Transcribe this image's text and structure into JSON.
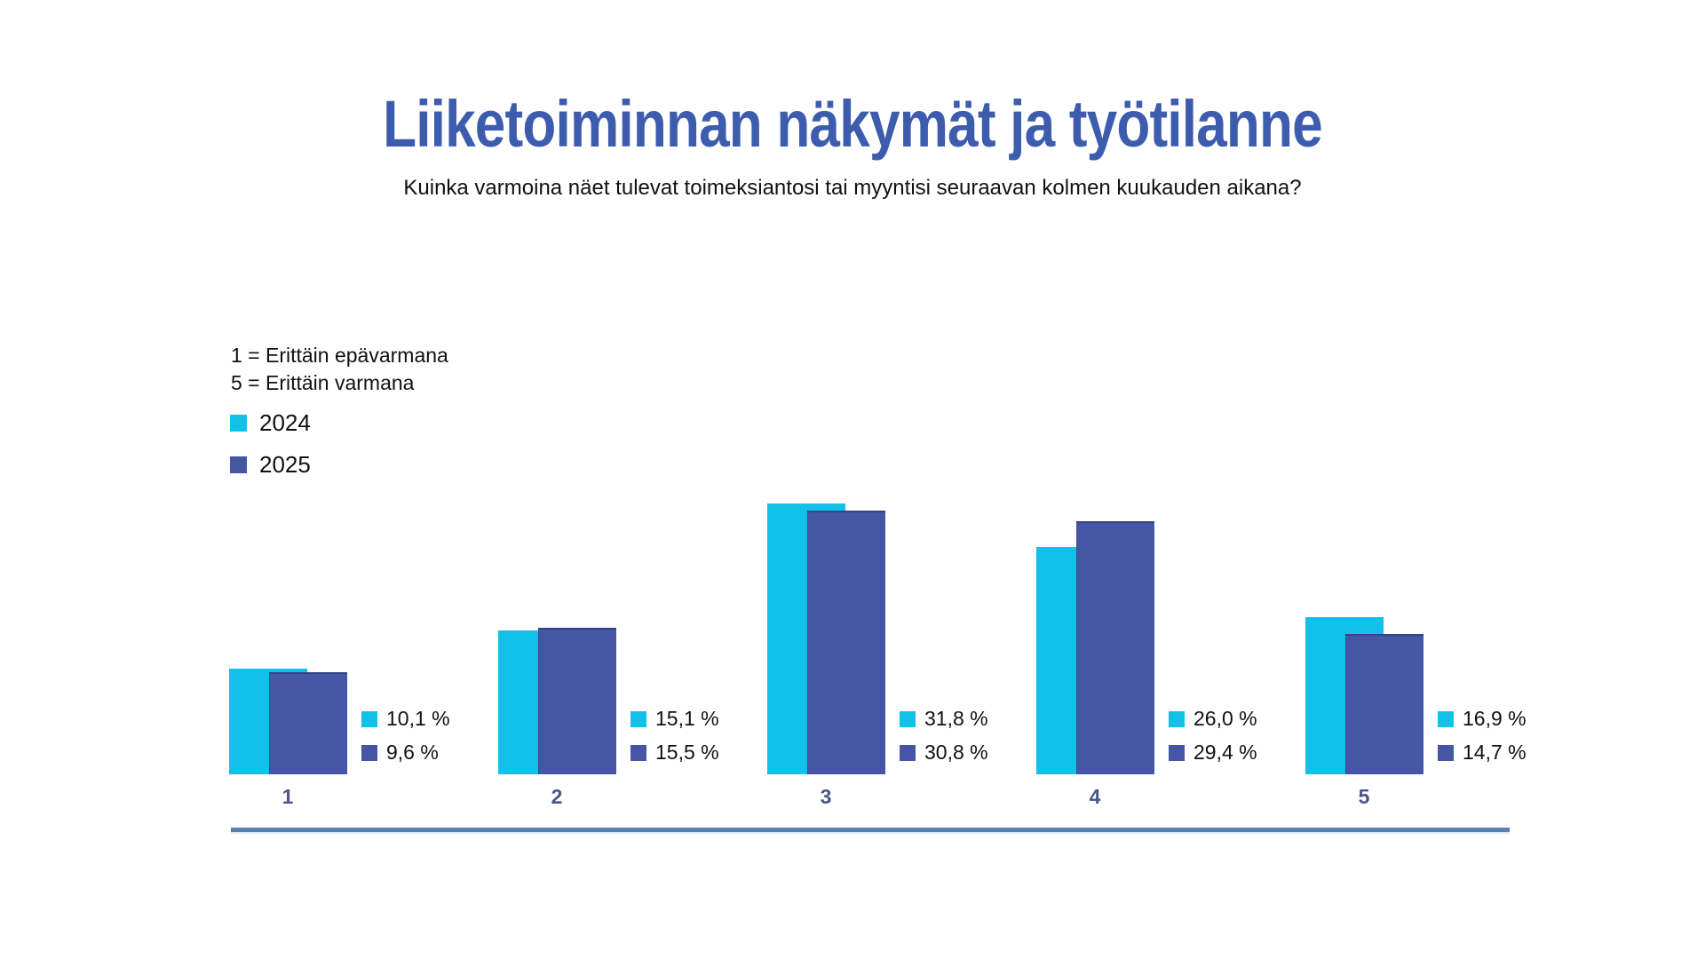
{
  "title": "Liiketoiminnan näkymät ja työtilanne",
  "subtitle": "Kuinka varmoina näet tulevat toimeksiantosi tai myyntisi seuraavan kolmen kuukauden aikana?",
  "scale_notes": {
    "low": "1 = Erittäin epävarmana",
    "high": "5 = Erittäin varmana"
  },
  "legend": [
    {
      "label": "2024",
      "color": "#12C1E9"
    },
    {
      "label": "2025",
      "color": "#4456A5"
    }
  ],
  "colors": {
    "series_2024": "#12C1E9",
    "series_2025": "#4456A5",
    "title": "#3D5CAE",
    "category_label": "#4A5589",
    "axis_line": "#5B80AD",
    "axis_line_light": "#D9E9F7",
    "text": "#111111"
  },
  "chart_data": {
    "type": "bar",
    "categories": [
      "1",
      "2",
      "3",
      "4",
      "5"
    ],
    "series": [
      {
        "name": "2024",
        "color": "#12C1E9",
        "values": [
          10.1,
          15.1,
          31.8,
          26.0,
          16.9
        ],
        "labels": [
          "10,1 %",
          "15,1 %",
          "31,8 %",
          "26,0 %",
          "16,9 %"
        ]
      },
      {
        "name": "2025",
        "color": "#4456A5",
        "values": [
          9.6,
          15.5,
          30.8,
          29.4,
          14.7
        ],
        "labels": [
          "9,6 %",
          "15,5 %",
          "30,8 %",
          "29,4 %",
          "14,7 %"
        ]
      }
    ],
    "title": "Liiketoiminnan näkymät ja työtilanne",
    "xlabel": "",
    "ylabel": "",
    "value_suffix": " %",
    "grid": false,
    "legend_position": "upper-left",
    "x_axis_note": "1 = Erittäin epävarmana, 5 = Erittäin varmana"
  }
}
